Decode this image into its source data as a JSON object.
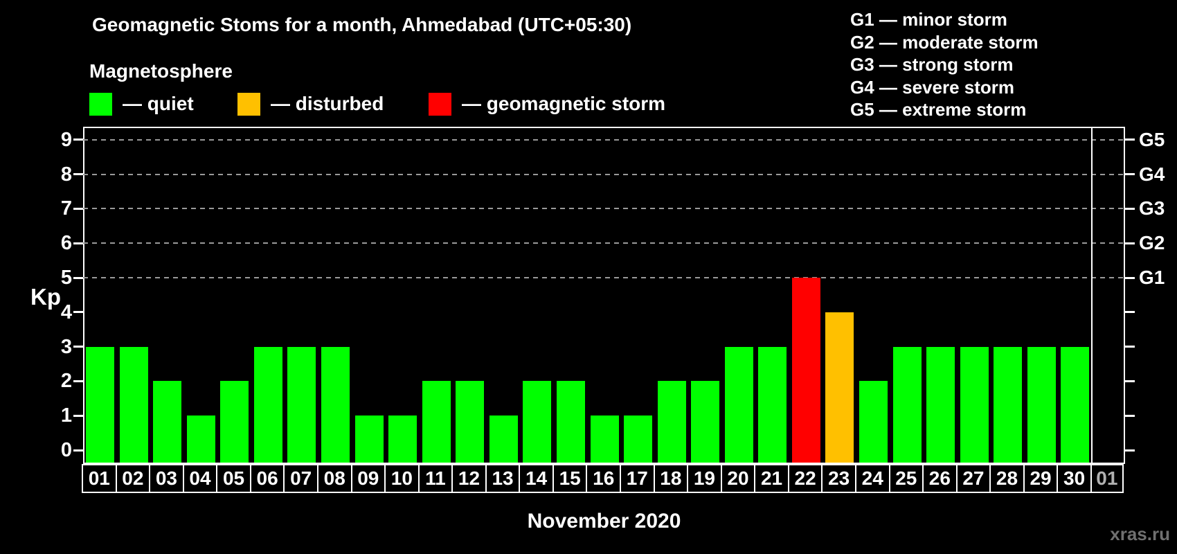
{
  "header": {
    "title": "Geomagnetic Stoms for a month, Ahmedabad (UTC+05:30)",
    "legend_title": "Magnetosphere",
    "legend_items": [
      {
        "status": "quiet",
        "label": "— quiet",
        "color": "#00ff00"
      },
      {
        "status": "disturbed",
        "label": "— disturbed",
        "color": "#ffc000"
      },
      {
        "status": "storm",
        "label": "— geomagnetic storm",
        "color": "#ff0000"
      }
    ],
    "g_legend": [
      {
        "code": "G1",
        "label": "— minor storm"
      },
      {
        "code": "G2",
        "label": "— moderate storm"
      },
      {
        "code": "G3",
        "label": "— strong storm"
      },
      {
        "code": "G4",
        "label": "— severe storm"
      },
      {
        "code": "G5",
        "label": "— extreme storm"
      }
    ]
  },
  "chart_data": {
    "type": "bar",
    "title": "Geomagnetic Stoms for a month, Ahmedabad (UTC+05:30)",
    "xlabel": "November 2020",
    "ylabel": "Kp",
    "ylim": [
      0,
      9
    ],
    "y_ticks": [
      0,
      1,
      2,
      3,
      4,
      5,
      6,
      7,
      8,
      9
    ],
    "gridlines_at": [
      5,
      6,
      7,
      8,
      9
    ],
    "right_axis_labels": [
      "G1",
      "G2",
      "G3",
      "G4",
      "G5"
    ],
    "right_axis_kp_levels": [
      5,
      6,
      7,
      8,
      9
    ],
    "categories": [
      "01",
      "02",
      "03",
      "04",
      "05",
      "06",
      "07",
      "08",
      "09",
      "10",
      "11",
      "12",
      "13",
      "14",
      "15",
      "16",
      "17",
      "18",
      "19",
      "20",
      "21",
      "22",
      "23",
      "24",
      "25",
      "26",
      "27",
      "28",
      "29",
      "30",
      "01"
    ],
    "values": [
      3,
      3,
      2,
      1,
      2,
      3,
      3,
      3,
      1,
      1,
      2,
      2,
      1,
      2,
      2,
      1,
      1,
      2,
      2,
      3,
      3,
      5,
      4,
      2,
      3,
      3,
      3,
      3,
      3,
      3,
      null
    ],
    "colors": {
      "quiet": "#00ff00",
      "disturbed": "#ffc000",
      "storm": "#ff0000"
    },
    "legend_position": "top-left",
    "grid": "dashed horizontal at Kp 5-9 only",
    "muted_label_color": "#b0b0b0"
  },
  "footer": {
    "month_label": "November 2020",
    "watermark": "xras.ru"
  }
}
